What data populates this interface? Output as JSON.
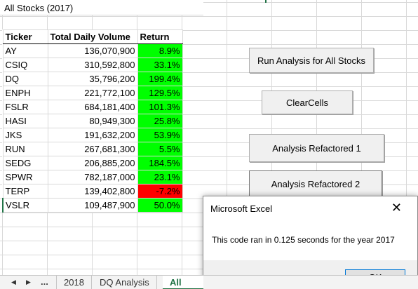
{
  "sheet_title": "All Stocks (2017)",
  "table": {
    "headers": [
      "Ticker",
      "Total Daily Volume",
      "Return"
    ],
    "rows": [
      {
        "ticker": "AY",
        "volume": "136,070,900",
        "return": "8.9%"
      },
      {
        "ticker": "CSIQ",
        "volume": "310,592,800",
        "return": "33.1%"
      },
      {
        "ticker": "DQ",
        "volume": "35,796,200",
        "return": "199.4%"
      },
      {
        "ticker": "ENPH",
        "volume": "221,772,100",
        "return": "129.5%"
      },
      {
        "ticker": "FSLR",
        "volume": "684,181,400",
        "return": "101.3%"
      },
      {
        "ticker": "HASI",
        "volume": "80,949,300",
        "return": "25.8%"
      },
      {
        "ticker": "JKS",
        "volume": "191,632,200",
        "return": "53.9%"
      },
      {
        "ticker": "RUN",
        "volume": "267,681,300",
        "return": "5.5%"
      },
      {
        "ticker": "SEDG",
        "volume": "206,885,200",
        "return": "184.5%"
      },
      {
        "ticker": "SPWR",
        "volume": "782,187,000",
        "return": "23.1%"
      },
      {
        "ticker": "TERP",
        "volume": "139,402,800",
        "return": "-7.2%"
      },
      {
        "ticker": "VSLR",
        "volume": "109,487,900",
        "return": "50.0%"
      }
    ]
  },
  "buttons": {
    "run_all": "Run Analysis for All Stocks",
    "clear": "ClearCells",
    "refactored_1": "Analysis Refactored 1",
    "refactored_2": "Analysis Refactored 2"
  },
  "dialog": {
    "title": "Microsoft Excel",
    "message": "This code ran in 0.125 seconds for the year 2017",
    "ok_label": "OK",
    "close_glyph": "✕"
  },
  "sheet_tabs": {
    "nav_prev": "◀",
    "nav_next": "▶",
    "more": "...",
    "tabs": [
      "2018",
      "DQ Analysis",
      "All Stoc"
    ]
  },
  "colors": {
    "positive": "#00ff00",
    "negative": "#ff0000",
    "accent": "#217346"
  }
}
